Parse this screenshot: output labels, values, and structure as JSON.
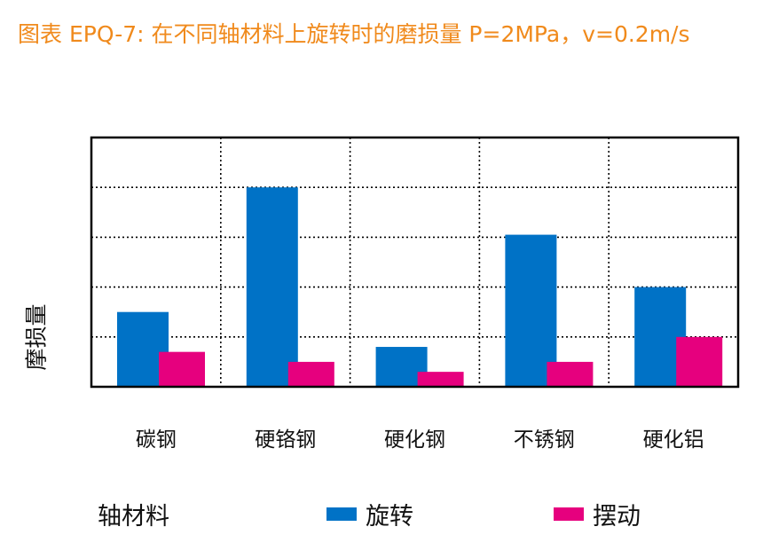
{
  "title": "图表 EPQ-7: 在不同轴材料上旋转时的磨损量 P=2MPa，v=0.2m/s",
  "chart_data": {
    "type": "bar",
    "title": "图表 EPQ-7: 在不同轴材料上旋转时的磨损量 P=2MPa，v=0.2m/s",
    "xlabel": "轴材料",
    "ylabel": "摩损量",
    "categories": [
      "碳钢",
      "硬铬钢",
      "硬化钢",
      "不锈钢",
      "硬化铝"
    ],
    "series": [
      {
        "name": "旋转",
        "color": "#0072c6",
        "values": [
          1.5,
          4.0,
          0.8,
          3.05,
          2.0
        ]
      },
      {
        "name": "摆动",
        "color": "#e6007e",
        "values": [
          0.7,
          0.5,
          0.3,
          0.5,
          1.0
        ]
      }
    ],
    "ylim": [
      0,
      5
    ],
    "grid": true,
    "legend_placement": "bottom"
  }
}
